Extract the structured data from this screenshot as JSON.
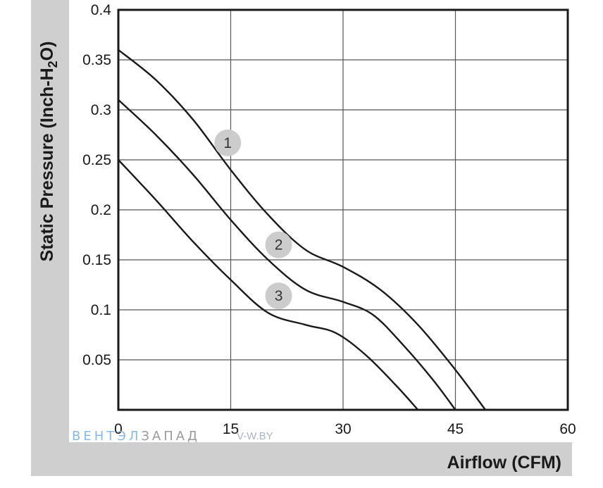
{
  "chart_data": {
    "type": "line",
    "xlabel": "Airflow (CFM)",
    "ylabel": "Static Pressure (Inch-H2O)",
    "ylabel_parts": {
      "before": "Static Pressure (Inch-H",
      "sub": "2",
      "after": "O)"
    },
    "xlim": [
      0,
      60
    ],
    "ylim": [
      0,
      0.4
    ],
    "x_ticks": [
      "0",
      "15",
      "30",
      "45",
      "60"
    ],
    "y_ticks": [
      "0.05",
      "0.1",
      "0.15",
      "0.2",
      "0.25",
      "0.3",
      "0.35",
      "0.4"
    ],
    "grid": true,
    "series": [
      {
        "name": "1",
        "label_at": [
          14.6,
          0.267
        ],
        "points": [
          [
            0,
            0.36
          ],
          [
            5,
            0.33
          ],
          [
            10,
            0.29
          ],
          [
            15,
            0.24
          ],
          [
            20,
            0.195
          ],
          [
            25,
            0.16
          ],
          [
            30,
            0.143
          ],
          [
            35,
            0.12
          ],
          [
            40,
            0.085
          ],
          [
            45,
            0.04
          ],
          [
            49,
            0
          ]
        ]
      },
      {
        "name": "2",
        "label_at": [
          21.4,
          0.165
        ],
        "points": [
          [
            0,
            0.31
          ],
          [
            5,
            0.275
          ],
          [
            10,
            0.235
          ],
          [
            15,
            0.19
          ],
          [
            20,
            0.15
          ],
          [
            25,
            0.12
          ],
          [
            30,
            0.108
          ],
          [
            34,
            0.095
          ],
          [
            38,
            0.065
          ],
          [
            42,
            0.03
          ],
          [
            45,
            0
          ]
        ]
      },
      {
        "name": "3",
        "label_at": [
          21.4,
          0.114
        ],
        "points": [
          [
            0,
            0.25
          ],
          [
            5,
            0.21
          ],
          [
            10,
            0.168
          ],
          [
            15,
            0.13
          ],
          [
            20,
            0.097
          ],
          [
            25,
            0.085
          ],
          [
            29,
            0.077
          ],
          [
            33,
            0.055
          ],
          [
            37,
            0.025
          ],
          [
            40,
            0
          ]
        ]
      }
    ],
    "colors": {
      "line": "#1a1a1a",
      "grid": "#555555",
      "frame": "#1a1a1a",
      "axis_band": "#cfcfcf",
      "badge": "#cccccc"
    }
  },
  "watermark": {
    "part1": "ВЕНТЭЛ",
    "part2": "ЗАПАД",
    "url": "V-W.BY",
    "color1": "#8bb8dc",
    "color2": "#9a9a9a"
  }
}
